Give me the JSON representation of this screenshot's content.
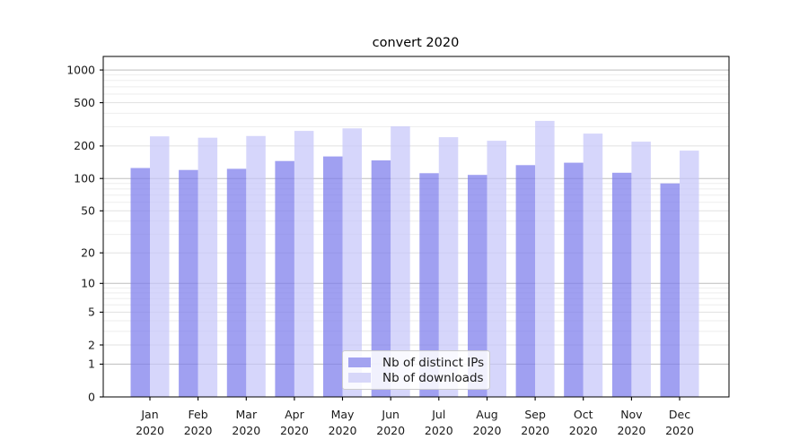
{
  "title": "convert 2020",
  "chart_data": {
    "type": "bar",
    "title": "convert 2020",
    "categories": [
      "Jan",
      "Feb",
      "Mar",
      "Apr",
      "May",
      "Jun",
      "Jul",
      "Aug",
      "Sep",
      "Oct",
      "Nov",
      "Dec"
    ],
    "year_label": "2020",
    "series": [
      {
        "name": "Nb of distinct IPs",
        "fill": "rgba(124,124,236,0.72)",
        "swatch": "#a3a3f0",
        "values": [
          125,
          120,
          123,
          145,
          160,
          147,
          112,
          108,
          133,
          140,
          113,
          90
        ]
      },
      {
        "name": "Nb of downloads",
        "fill": "rgba(198,198,250,0.72)",
        "swatch": "#d7d7f9",
        "values": [
          245,
          238,
          247,
          275,
          290,
          303,
          241,
          223,
          340,
          260,
          219,
          181
        ]
      }
    ],
    "yscale": "log1p",
    "y_ticks": [
      0,
      1,
      2,
      5,
      10,
      20,
      50,
      100,
      200,
      500,
      1000
    ],
    "ylim": [
      0,
      1330
    ],
    "grid": "both",
    "legend_position": "lower center"
  },
  "colors": {
    "background": "#ffffff",
    "spine": "#000000",
    "text": "#1a1a1a",
    "grid_decade": "#bdbdbd",
    "grid_labeled": "#e1e1e1",
    "grid_minor": "#eeeeee",
    "legend_border": "#cccccc"
  }
}
